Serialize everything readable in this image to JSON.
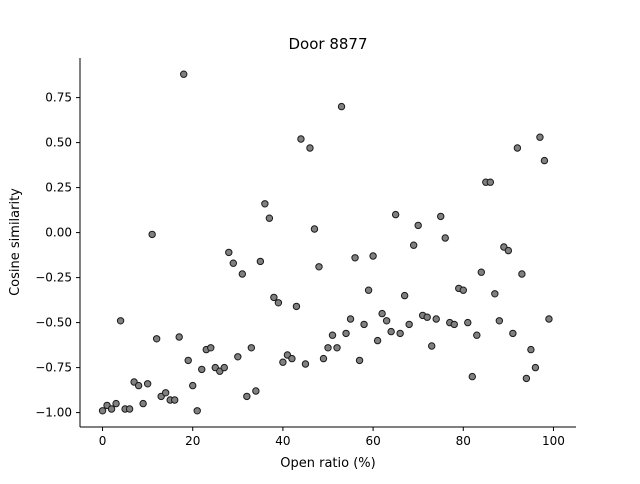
{
  "chart_data": {
    "type": "scatter",
    "title": "Door 8877",
    "xlabel": "Open ratio (%)",
    "ylabel": "Cosine similarity",
    "xlim": [
      -5,
      105
    ],
    "ylim": [
      -1.08,
      0.97
    ],
    "xticks": [
      0,
      20,
      40,
      60,
      80,
      100
    ],
    "xtick_labels": [
      "0",
      "20",
      "40",
      "60",
      "80",
      "100"
    ],
    "yticks": [
      -1.0,
      -0.75,
      -0.5,
      -0.25,
      0.0,
      0.25,
      0.5,
      0.75
    ],
    "ytick_labels": [
      "−1.00",
      "−0.75",
      "−0.50",
      "−0.25",
      "0.00",
      "0.25",
      "0.50",
      "0.75"
    ],
    "grid": false,
    "legend": "none",
    "marker_fill": "#808080",
    "marker_edge": "#1a1a1a",
    "points": [
      [
        0,
        -0.99
      ],
      [
        1,
        -0.96
      ],
      [
        2,
        -0.98
      ],
      [
        3,
        -0.95
      ],
      [
        4,
        -0.49
      ],
      [
        5,
        -0.98
      ],
      [
        6,
        -0.98
      ],
      [
        7,
        -0.83
      ],
      [
        8,
        -0.85
      ],
      [
        9,
        -0.95
      ],
      [
        10,
        -0.84
      ],
      [
        11,
        -0.01
      ],
      [
        12,
        -0.59
      ],
      [
        13,
        -0.91
      ],
      [
        14,
        -0.89
      ],
      [
        15,
        -0.93
      ],
      [
        16,
        -0.93
      ],
      [
        17,
        -0.58
      ],
      [
        18,
        0.88
      ],
      [
        19,
        -0.71
      ],
      [
        20,
        -0.85
      ],
      [
        21,
        -0.99
      ],
      [
        22,
        -0.76
      ],
      [
        23,
        -0.65
      ],
      [
        24,
        -0.64
      ],
      [
        25,
        -0.75
      ],
      [
        26,
        -0.77
      ],
      [
        27,
        -0.75
      ],
      [
        28,
        -0.11
      ],
      [
        29,
        -0.17
      ],
      [
        30,
        -0.69
      ],
      [
        31,
        -0.23
      ],
      [
        32,
        -0.91
      ],
      [
        33,
        -0.64
      ],
      [
        34,
        -0.88
      ],
      [
        35,
        -0.16
      ],
      [
        36,
        0.16
      ],
      [
        37,
        0.08
      ],
      [
        38,
        -0.36
      ],
      [
        39,
        -0.39
      ],
      [
        40,
        -0.72
      ],
      [
        41,
        -0.68
      ],
      [
        42,
        -0.7
      ],
      [
        43,
        -0.41
      ],
      [
        44,
        0.52
      ],
      [
        45,
        -0.73
      ],
      [
        46,
        0.47
      ],
      [
        47,
        0.02
      ],
      [
        48,
        -0.19
      ],
      [
        49,
        -0.7
      ],
      [
        50,
        -0.64
      ],
      [
        51,
        -0.57
      ],
      [
        52,
        -0.64
      ],
      [
        53,
        0.7
      ],
      [
        54,
        -0.56
      ],
      [
        55,
        -0.48
      ],
      [
        56,
        -0.14
      ],
      [
        57,
        -0.71
      ],
      [
        58,
        -0.51
      ],
      [
        59,
        -0.32
      ],
      [
        60,
        -0.13
      ],
      [
        61,
        -0.6
      ],
      [
        62,
        -0.45
      ],
      [
        63,
        -0.49
      ],
      [
        64,
        -0.55
      ],
      [
        65,
        0.1
      ],
      [
        66,
        -0.56
      ],
      [
        67,
        -0.35
      ],
      [
        68,
        -0.51
      ],
      [
        69,
        -0.07
      ],
      [
        70,
        0.04
      ],
      [
        71,
        -0.46
      ],
      [
        72,
        -0.47
      ],
      [
        73,
        -0.63
      ],
      [
        74,
        -0.48
      ],
      [
        75,
        0.09
      ],
      [
        76,
        -0.03
      ],
      [
        77,
        -0.5
      ],
      [
        78,
        -0.51
      ],
      [
        79,
        -0.31
      ],
      [
        80,
        -0.32
      ],
      [
        81,
        -0.5
      ],
      [
        82,
        -0.8
      ],
      [
        83,
        -0.57
      ],
      [
        84,
        -0.22
      ],
      [
        85,
        0.28
      ],
      [
        86,
        0.28
      ],
      [
        87,
        -0.34
      ],
      [
        88,
        -0.49
      ],
      [
        89,
        -0.08
      ],
      [
        90,
        -0.1
      ],
      [
        91,
        -0.56
      ],
      [
        92,
        0.47
      ],
      [
        93,
        -0.23
      ],
      [
        94,
        -0.81
      ],
      [
        95,
        -0.65
      ],
      [
        96,
        -0.75
      ],
      [
        97,
        0.53
      ],
      [
        98,
        0.4
      ],
      [
        99,
        -0.48
      ]
    ]
  }
}
